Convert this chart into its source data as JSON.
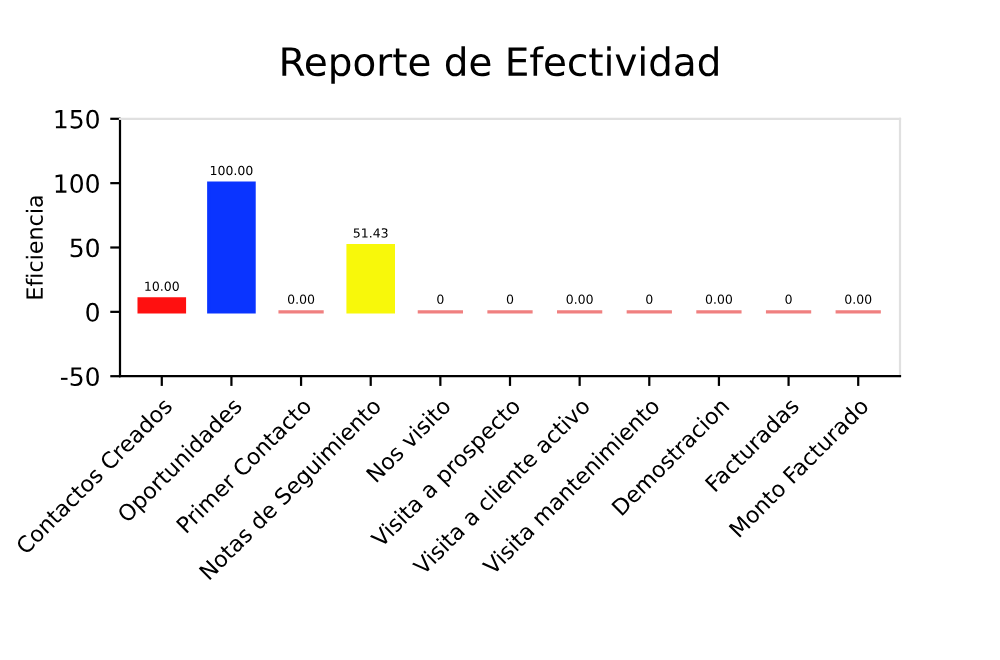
{
  "chart_data": {
    "type": "bar",
    "title": "Reporte de Efectividad",
    "ylabel": "Eficiencia",
    "categories": [
      "Contactos Creados",
      "Oportunidades",
      "Primer Contacto",
      "Notas de Seguimiento",
      "Nos visito",
      "Visita a prospecto",
      "Visita a cliente activo",
      "Visita mantenimiento",
      "Demostracion",
      "Facturadas",
      "Monto Facturado"
    ],
    "values": [
      10,
      100,
      0,
      51.43,
      0,
      0,
      0,
      0,
      0,
      0,
      0
    ],
    "colors": [
      "#ff1010",
      "#0a34ff",
      "#f08080",
      "#f8f80a",
      "#f08080",
      "#f08080",
      "#f08080",
      "#f08080",
      "#f08080",
      "#f08080",
      "#f08080"
    ],
    "value_labels": [
      "10.00",
      "100.00",
      "0.00",
      "51.43",
      "0",
      "0",
      "0.00",
      "0",
      "0.00",
      "0",
      "0.00"
    ],
    "ylim": [
      -50,
      150
    ],
    "yticks": [
      -50,
      0,
      50,
      100,
      150
    ],
    "grid": false,
    "legend": false
  }
}
